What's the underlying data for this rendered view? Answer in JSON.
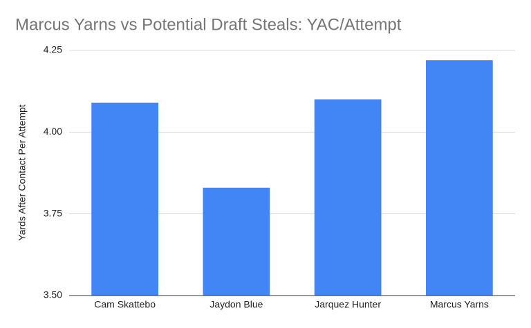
{
  "chart_data": {
    "type": "bar",
    "title": "Marcus Yarns vs Potential Draft Steals: YAC/Attempt",
    "y_label": "Yards After Contact Per Attempt",
    "categories": [
      "Cam Skattebo",
      "Jaydon Blue",
      "Jarquez Hunter",
      "Marcus Yarns"
    ],
    "values": [
      4.09,
      3.83,
      4.1,
      4.22
    ],
    "color": "#4285f4",
    "ylim": [
      3.5,
      4.25
    ],
    "yticks": [
      {
        "value": 3.5,
        "label": "3.50"
      },
      {
        "value": 3.75,
        "label": "3.75"
      },
      {
        "value": 4.0,
        "label": "4.00"
      },
      4.25
    ],
    "grid": true
  }
}
